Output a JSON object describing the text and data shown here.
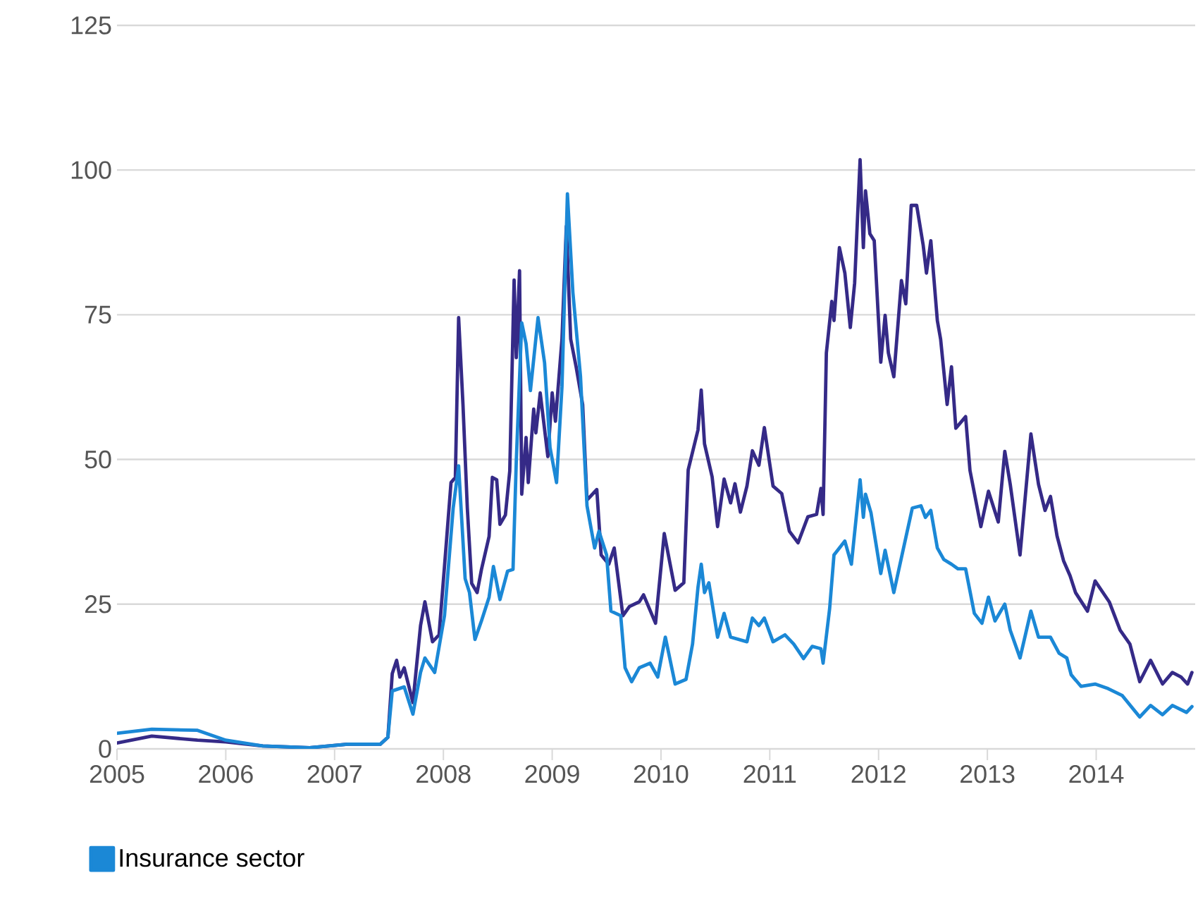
{
  "chart_data": {
    "type": "line",
    "xlim": [
      2005,
      2014.91
    ],
    "xticks": [
      2005,
      2006,
      2007,
      2008,
      2009,
      2010,
      2011,
      2012,
      2013,
      2014
    ],
    "ylim": [
      0,
      125
    ],
    "yticks": [
      0,
      25,
      50,
      75,
      100,
      125
    ],
    "grid": "y",
    "legend": "bottom",
    "marker": "none",
    "line_style": "solid",
    "series": [
      {
        "color": "#352a87",
        "x": [
          2005.0,
          2005.32,
          2005.74,
          2006.0,
          2006.34,
          2006.77,
          2007.12,
          2007.42,
          2007.49,
          2007.53,
          2007.57,
          2007.6,
          2007.64,
          2007.72,
          2007.79,
          2007.83,
          2007.9,
          2007.96,
          2008.01,
          2008.07,
          2008.11,
          2008.14,
          2008.18,
          2008.22,
          2008.26,
          2008.31,
          2008.35,
          2008.42,
          2008.45,
          2008.49,
          2008.52,
          2008.57,
          2008.61,
          2008.65,
          2008.67,
          2008.7,
          2008.72,
          2008.76,
          2008.78,
          2008.83,
          2008.85,
          2008.89,
          2008.96,
          2009.0,
          2009.03,
          2009.09,
          2009.13,
          2009.17,
          2009.22,
          2009.28,
          2009.32,
          2009.41,
          2009.45,
          2009.52,
          2009.57,
          2009.65,
          2009.71,
          2009.8,
          2009.84,
          2009.95,
          2010.03,
          2010.13,
          2010.21,
          2010.25,
          2010.34,
          2010.37,
          2010.4,
          2010.47,
          2010.52,
          2010.58,
          2010.64,
          2010.68,
          2010.73,
          2010.79,
          2010.84,
          2010.9,
          2010.95,
          2011.03,
          2011.11,
          2011.18,
          2011.26,
          2011.35,
          2011.43,
          2011.47,
          2011.49,
          2011.52,
          2011.57,
          2011.59,
          2011.64,
          2011.69,
          2011.74,
          2011.78,
          2011.83,
          2011.86,
          2011.88,
          2011.92,
          2011.96,
          2012.02,
          2012.06,
          2012.09,
          2012.14,
          2012.21,
          2012.25,
          2012.3,
          2012.35,
          2012.41,
          2012.44,
          2012.48,
          2012.54,
          2012.57,
          2012.63,
          2012.67,
          2012.71,
          2012.8,
          2012.84,
          2012.94,
          2013.01,
          2013.1,
          2013.16,
          2013.21,
          2013.3,
          2013.4,
          2013.47,
          2013.53,
          2013.58,
          2013.64,
          2013.7,
          2013.76,
          2013.81,
          2013.92,
          2013.99,
          2014.12,
          2014.22,
          2014.31,
          2014.4,
          2014.5,
          2014.61,
          2014.7,
          2014.78,
          2014.84,
          2014.88
        ],
        "values": [
          1,
          2.2,
          1.5,
          1.2,
          0.5,
          0.2,
          0.8,
          0.8,
          2,
          13,
          15.3,
          12.4,
          14,
          8,
          21.3,
          25.4,
          18.5,
          19.7,
          31.5,
          46,
          46.9,
          74.5,
          59.5,
          41.6,
          28.6,
          27,
          31,
          36.7,
          46.9,
          46.5,
          38.8,
          40.4,
          48,
          81,
          67.6,
          82.6,
          44,
          53.8,
          46,
          58.7,
          54.6,
          61.5,
          50.5,
          61.5,
          56.6,
          70.8,
          90.3,
          70.8,
          66,
          59.5,
          43,
          44.8,
          33.5,
          31.9,
          34.7,
          23,
          24.6,
          25.4,
          26.6,
          21.7,
          37.2,
          27.4,
          28.7,
          48.2,
          55.1,
          62,
          52.7,
          47,
          38.4,
          46.6,
          42.5,
          45.8,
          40.9,
          45.4,
          51.5,
          49,
          55.5,
          45.4,
          44.1,
          37.6,
          35.6,
          40.1,
          40.5,
          45,
          40.5,
          68.4,
          77.3,
          74,
          86.6,
          82.2,
          72.8,
          80.5,
          101.8,
          86.6,
          96.4,
          89,
          87.8,
          66.8,
          74.9,
          68.4,
          64.3,
          80.9,
          76.9,
          93.9,
          93.9,
          87,
          82.2,
          87.8,
          74,
          70.8,
          59.5,
          66,
          55.4,
          57.4,
          48.1,
          38.4,
          44.5,
          39.2,
          51.4,
          45.7,
          33.5,
          54.4,
          45.7,
          41.2,
          43.6,
          36.8,
          32.5,
          29.9,
          27,
          23.8,
          29,
          25.4,
          20.5,
          18.1,
          11.6,
          15.3,
          11.2,
          13.2,
          12.4,
          11.2,
          13.2
        ]
      },
      {
        "name": "Insurance sector",
        "color": "#1b88d6",
        "x": [
          2005.0,
          2005.32,
          2005.74,
          2006.0,
          2006.34,
          2006.77,
          2007.12,
          2007.42,
          2007.49,
          2007.53,
          2007.64,
          2007.72,
          2007.79,
          2007.83,
          2007.92,
          2008.01,
          2008.09,
          2008.14,
          2008.2,
          2008.24,
          2008.29,
          2008.35,
          2008.42,
          2008.46,
          2008.52,
          2008.59,
          2008.64,
          2008.67,
          2008.72,
          2008.76,
          2008.8,
          2008.87,
          2008.93,
          2008.98,
          2009.04,
          2009.09,
          2009.14,
          2009.19,
          2009.26,
          2009.32,
          2009.39,
          2009.43,
          2009.5,
          2009.54,
          2009.63,
          2009.67,
          2009.73,
          2009.8,
          2009.9,
          2009.97,
          2010.04,
          2010.13,
          2010.23,
          2010.29,
          2010.34,
          2010.37,
          2010.4,
          2010.44,
          2010.52,
          2010.58,
          2010.64,
          2010.79,
          2010.84,
          2010.9,
          2010.95,
          2011.03,
          2011.14,
          2011.22,
          2011.31,
          2011.39,
          2011.47,
          2011.49,
          2011.55,
          2011.59,
          2011.69,
          2011.75,
          2011.83,
          2011.86,
          2011.88,
          2011.93,
          2012.02,
          2012.06,
          2012.14,
          2012.22,
          2012.31,
          2012.39,
          2012.43,
          2012.48,
          2012.54,
          2012.6,
          2012.67,
          2012.73,
          2012.8,
          2012.88,
          2012.95,
          2013.01,
          2013.07,
          2013.16,
          2013.21,
          2013.3,
          2013.4,
          2013.47,
          2013.58,
          2013.66,
          2013.73,
          2013.77,
          2013.86,
          2013.99,
          2014.11,
          2014.24,
          2014.4,
          2014.5,
          2014.61,
          2014.7,
          2014.83,
          2014.88
        ],
        "values": [
          2.7,
          3.4,
          3.2,
          1.5,
          0.5,
          0.2,
          0.8,
          0.8,
          2,
          10,
          10.7,
          6,
          13.2,
          15.7,
          13.2,
          23,
          41.6,
          48.9,
          29.4,
          27,
          18.9,
          22.1,
          26.2,
          31.5,
          25.8,
          30.7,
          31,
          49.7,
          73.6,
          70,
          61.9,
          74.5,
          66.7,
          52.1,
          46,
          62.6,
          95.9,
          78.9,
          64.4,
          42,
          34.7,
          37.6,
          33.5,
          23.8,
          23,
          14,
          11.6,
          14,
          14.8,
          12.4,
          19.3,
          11.2,
          12,
          18.1,
          27.9,
          31.9,
          27,
          28.7,
          19.3,
          23.4,
          19.3,
          18.5,
          22.6,
          21.3,
          22.6,
          18.5,
          19.7,
          18.1,
          15.6,
          17.7,
          17.3,
          14.8,
          24.2,
          33.5,
          35.9,
          31.9,
          46.5,
          40,
          44,
          40.8,
          30.3,
          34.3,
          27,
          33.9,
          41.6,
          42,
          40,
          41.2,
          34.7,
          32.7,
          31.9,
          31.1,
          31.1,
          23.4,
          21.7,
          26.2,
          22.1,
          25,
          20.5,
          15.7,
          23.8,
          19.3,
          19.3,
          16.5,
          15.7,
          12.8,
          10.8,
          11.2,
          10.4,
          9.2,
          5.5,
          7.5,
          5.9,
          7.5,
          6.3,
          7.3
        ]
      }
    ]
  }
}
